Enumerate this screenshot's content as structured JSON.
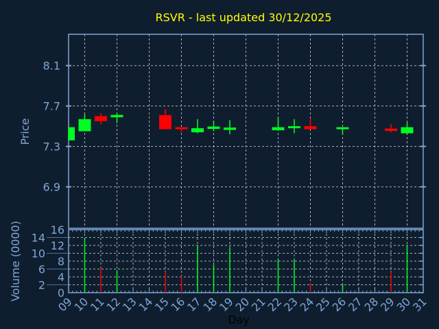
{
  "chart_data": {
    "type": "candlestick",
    "title": "RSVR - last updated 30/12/2025",
    "colors": {
      "background": "#0f1e2f",
      "axis": "#7fa6d5",
      "title": "#ffff00",
      "up": "#00ff22",
      "down": "#ff0000",
      "grid": "#c8c8c8",
      "xlabel": "#000000"
    },
    "grid": true,
    "price_panel": {
      "ylabel": "Price",
      "ylim": [
        6.49,
        8.41
      ],
      "yticks": [
        6.9,
        7.3,
        7.7,
        8.1
      ],
      "ytick_labels": [
        "6.9",
        "7.3",
        "7.7",
        "8.1"
      ]
    },
    "volume_panel": {
      "ylabel": "Volume (0000)",
      "ylim": [
        0,
        16
      ],
      "yticks": [
        0,
        2,
        4,
        6,
        8,
        10,
        12,
        14,
        16
      ],
      "ytick_labels": [
        "0",
        "2",
        "4",
        "6",
        "8",
        "10",
        "12",
        "14",
        "16"
      ]
    },
    "xlabel": "Day",
    "xlim": [
      9,
      31
    ],
    "xtick_labels": [
      "09",
      "10",
      "11",
      "12",
      "13",
      "14",
      "15",
      "16",
      "17",
      "18",
      "19",
      "20",
      "21",
      "22",
      "23",
      "24",
      "25",
      "26",
      "27",
      "28",
      "29",
      "30",
      "31"
    ],
    "candles": [
      {
        "day": 9,
        "open": 7.36,
        "high": 7.49,
        "low": 7.36,
        "close": 7.49,
        "volume": null
      },
      {
        "day": 10,
        "open": 7.45,
        "high": 7.62,
        "low": 7.45,
        "close": 7.57,
        "volume": 13.9
      },
      {
        "day": 11,
        "open": 7.6,
        "high": 7.63,
        "low": 7.52,
        "close": 7.55,
        "volume": 6.3
      },
      {
        "day": 12,
        "open": 7.595,
        "high": 7.63,
        "low": 7.53,
        "close": 7.605,
        "volume": 5.7
      },
      {
        "day": 15,
        "open": 7.61,
        "high": 7.67,
        "low": 7.47,
        "close": 7.47,
        "volume": 5.3
      },
      {
        "day": 16,
        "open": 7.49,
        "high": 7.49,
        "low": 7.44,
        "close": 7.47,
        "volume": 4.3
      },
      {
        "day": 17,
        "open": 7.44,
        "high": 7.57,
        "low": 7.43,
        "close": 7.48,
        "volume": 11.9
      },
      {
        "day": 18,
        "open": 7.48,
        "high": 7.55,
        "low": 7.45,
        "close": 7.49,
        "volume": 7.1
      },
      {
        "day": 19,
        "open": 7.47,
        "high": 7.56,
        "low": 7.42,
        "close": 7.48,
        "volume": 11.4
      },
      {
        "day": 22,
        "open": 7.46,
        "high": 7.58,
        "low": 7.46,
        "close": 7.49,
        "volume": 8.5
      },
      {
        "day": 23,
        "open": 7.48,
        "high": 7.57,
        "low": 7.43,
        "close": 7.5,
        "volume": 8.5
      },
      {
        "day": 24,
        "open": 7.5,
        "high": 7.58,
        "low": 7.47,
        "close": 7.47,
        "volume": 2.4
      },
      {
        "day": 26,
        "open": 7.47,
        "high": 7.49,
        "low": 7.42,
        "close": 7.49,
        "volume": 2.2
      },
      {
        "day": 29,
        "open": 7.47,
        "high": 7.52,
        "low": 7.44,
        "close": 7.46,
        "volume": 5.3
      },
      {
        "day": 30,
        "open": 7.43,
        "high": 7.54,
        "low": 7.42,
        "close": 7.49,
        "volume": 11.9
      }
    ]
  }
}
